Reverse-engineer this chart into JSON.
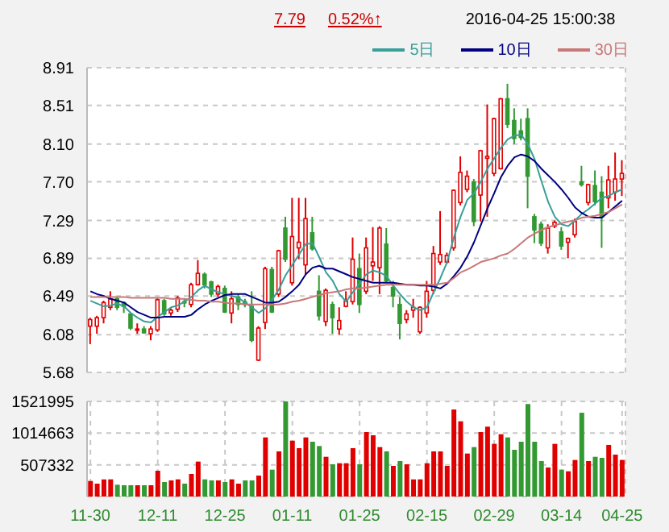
{
  "chart_data": [
    {
      "type": "candlestick",
      "annotations": [
        "7.79",
        "0.52%↑",
        "2016-04-25 15:00:38"
      ],
      "categories": [
        null,
        null,
        null,
        null,
        null,
        null,
        null,
        null,
        null,
        null,
        null,
        null,
        null,
        null,
        null,
        null,
        null,
        null,
        null,
        null,
        null,
        null,
        null,
        null,
        null,
        null,
        null,
        null,
        null,
        null,
        null,
        null,
        null,
        null,
        null,
        null,
        null,
        null,
        null,
        null,
        null,
        null,
        null,
        null,
        null,
        null,
        null,
        null,
        null,
        null,
        null,
        null,
        null,
        null,
        null,
        null,
        null,
        null,
        null,
        null,
        null,
        null,
        null,
        null,
        null,
        null,
        null,
        null,
        null,
        null,
        null,
        null,
        null,
        null,
        null,
        null,
        null,
        null,
        null,
        null
      ],
      "ohlc": [
        [
          6.17,
          6.26,
          5.98,
          6.24
        ],
        [
          6.17,
          6.28,
          6.09,
          6.26
        ],
        [
          6.26,
          6.44,
          6.2,
          6.42
        ],
        [
          6.37,
          6.54,
          6.34,
          6.46
        ],
        [
          6.46,
          6.48,
          6.34,
          6.37
        ],
        [
          6.42,
          6.43,
          6.31,
          6.38
        ],
        [
          6.3,
          6.31,
          6.13,
          6.15
        ],
        [
          6.13,
          6.2,
          6.09,
          6.14
        ],
        [
          6.14,
          6.17,
          6.09,
          6.1
        ],
        [
          6.09,
          6.17,
          6.02,
          6.14
        ],
        [
          6.13,
          6.47,
          6.11,
          6.45
        ],
        [
          6.44,
          6.46,
          6.28,
          6.3
        ],
        [
          6.31,
          6.36,
          6.28,
          6.34
        ],
        [
          6.35,
          6.49,
          6.32,
          6.47
        ],
        [
          6.43,
          6.46,
          6.37,
          6.42
        ],
        [
          6.4,
          6.63,
          6.37,
          6.61
        ],
        [
          6.61,
          6.87,
          6.6,
          6.73
        ],
        [
          6.72,
          6.74,
          6.57,
          6.61
        ],
        [
          6.64,
          6.65,
          6.48,
          6.51
        ],
        [
          6.51,
          6.61,
          6.48,
          6.59
        ],
        [
          6.57,
          6.6,
          6.31,
          6.32
        ],
        [
          6.31,
          6.54,
          6.2,
          6.46
        ],
        [
          6.48,
          6.51,
          6.34,
          6.4
        ],
        [
          6.43,
          6.46,
          6.37,
          6.4
        ],
        [
          6.38,
          6.54,
          6.0,
          6.02
        ],
        [
          5.81,
          6.17,
          5.8,
          6.15
        ],
        [
          6.21,
          6.8,
          6.14,
          6.78
        ],
        [
          6.77,
          6.8,
          6.31,
          6.32
        ],
        [
          6.51,
          6.98,
          6.48,
          6.97
        ],
        [
          7.21,
          7.33,
          6.85,
          6.88
        ],
        [
          6.63,
          7.53,
          6.6,
          7.12
        ],
        [
          7.0,
          7.53,
          6.88,
          7.06
        ],
        [
          6.82,
          7.53,
          6.71,
          7.31
        ],
        [
          7.16,
          7.33,
          6.97,
          6.99
        ],
        [
          6.54,
          6.71,
          6.23,
          6.28
        ],
        [
          6.22,
          6.57,
          6.17,
          6.55
        ],
        [
          6.4,
          6.43,
          6.09,
          6.26
        ],
        [
          6.14,
          6.37,
          6.08,
          6.23
        ],
        [
          6.38,
          6.54,
          6.37,
          6.44
        ],
        [
          6.43,
          7.11,
          6.4,
          6.88
        ],
        [
          6.78,
          6.94,
          6.31,
          6.4
        ],
        [
          6.54,
          7.11,
          6.51,
          7.0
        ],
        [
          6.81,
          7.22,
          6.65,
          6.85
        ],
        [
          6.79,
          7.23,
          6.51,
          7.21
        ],
        [
          7.04,
          7.21,
          6.63,
          6.65
        ],
        [
          6.58,
          6.65,
          6.37,
          6.49
        ],
        [
          6.4,
          6.48,
          6.03,
          6.2
        ],
        [
          6.24,
          6.34,
          6.2,
          6.3
        ],
        [
          6.34,
          6.46,
          6.26,
          6.37
        ],
        [
          6.11,
          6.38,
          6.09,
          6.37
        ],
        [
          6.31,
          6.65,
          6.26,
          6.54
        ],
        [
          6.55,
          7.02,
          6.51,
          6.94
        ],
        [
          6.85,
          7.39,
          6.82,
          6.93
        ],
        [
          6.85,
          6.95,
          6.83,
          6.92
        ],
        [
          7.0,
          7.62,
          6.97,
          7.61
        ],
        [
          7.48,
          7.97,
          7.45,
          7.8
        ],
        [
          7.62,
          7.82,
          7.59,
          7.76
        ],
        [
          7.7,
          7.73,
          7.23,
          7.28
        ],
        [
          7.56,
          8.04,
          7.28,
          8.03
        ],
        [
          7.95,
          8.52,
          7.33,
          7.97
        ],
        [
          7.79,
          8.38,
          7.76,
          8.37
        ],
        [
          7.84,
          8.59,
          7.83,
          8.58
        ],
        [
          8.58,
          8.74,
          8.27,
          8.31
        ],
        [
          8.35,
          8.48,
          8.1,
          8.16
        ],
        [
          8.24,
          8.37,
          8.14,
          8.17
        ],
        [
          8.37,
          8.48,
          7.42,
          7.76
        ],
        [
          7.33,
          7.36,
          7.05,
          7.19
        ],
        [
          7.25,
          7.28,
          7.02,
          7.05
        ],
        [
          7.0,
          7.25,
          6.94,
          7.21
        ],
        [
          7.23,
          7.29,
          7.21,
          7.27
        ],
        [
          7.17,
          7.22,
          6.98,
          7.02
        ],
        [
          7.06,
          7.11,
          6.89,
          7.1
        ],
        [
          7.14,
          7.31,
          7.11,
          7.28
        ],
        [
          7.7,
          7.87,
          7.65,
          7.67
        ],
        [
          7.48,
          7.68,
          7.45,
          7.67
        ],
        [
          7.66,
          7.82,
          7.45,
          7.49
        ],
        [
          7.59,
          7.76,
          7.0,
          7.33
        ],
        [
          7.53,
          7.87,
          7.42,
          7.72
        ],
        [
          7.59,
          8.01,
          7.5,
          7.73
        ],
        [
          7.73,
          7.93,
          7.55,
          7.79
        ]
      ],
      "series": [
        {
          "type": "line",
          "name": "5日",
          "color": "#3a9e9a",
          "values": [
            6.44,
            6.41,
            6.38,
            6.39,
            6.41,
            6.38,
            6.31,
            6.26,
            6.22,
            6.21,
            6.27,
            6.32,
            6.37,
            6.39,
            6.43,
            6.48,
            6.55,
            6.6,
            6.56,
            6.53,
            6.51,
            6.49,
            6.47,
            6.42,
            6.37,
            6.31,
            6.36,
            6.45,
            6.56,
            6.71,
            6.82,
            6.93,
            7.04,
            7.05,
            6.9,
            6.74,
            6.65,
            6.51,
            6.43,
            6.53,
            6.62,
            6.72,
            6.76,
            6.74,
            6.7,
            6.6,
            6.51,
            6.43,
            6.37,
            6.34,
            6.37,
            6.53,
            6.68,
            6.85,
            7.11,
            7.33,
            7.51,
            7.58,
            7.7,
            7.84,
            7.95,
            8.06,
            8.15,
            8.19,
            8.2,
            8.1,
            7.94,
            7.71,
            7.49,
            7.33,
            7.25,
            7.23,
            7.29,
            7.36,
            7.41,
            7.47,
            7.53,
            7.55,
            7.59,
            7.62
          ]
        },
        {
          "type": "line",
          "name": "10日",
          "color": "#000080",
          "values": [
            6.54,
            6.51,
            6.49,
            6.46,
            6.44,
            6.42,
            6.37,
            6.32,
            6.29,
            6.26,
            6.26,
            6.27,
            6.27,
            6.27,
            6.27,
            6.29,
            6.35,
            6.4,
            6.44,
            6.47,
            6.5,
            6.51,
            6.51,
            6.51,
            6.48,
            6.45,
            6.42,
            6.42,
            6.43,
            6.48,
            6.54,
            6.61,
            6.72,
            6.79,
            6.81,
            6.78,
            6.78,
            6.75,
            6.72,
            6.69,
            6.67,
            6.65,
            6.63,
            6.63,
            6.63,
            6.63,
            6.62,
            6.61,
            6.61,
            6.6,
            6.6,
            6.59,
            6.57,
            6.62,
            6.7,
            6.79,
            6.91,
            7.06,
            7.24,
            7.42,
            7.58,
            7.75,
            7.87,
            7.96,
            7.99,
            7.97,
            7.92,
            7.84,
            7.77,
            7.7,
            7.62,
            7.53,
            7.43,
            7.37,
            7.33,
            7.32,
            7.32,
            7.38,
            7.44,
            7.5
          ]
        },
        {
          "type": "line",
          "name": "30日",
          "color": "#c87878",
          "values": [
            6.48,
            6.48,
            6.48,
            6.48,
            6.48,
            6.48,
            6.47,
            6.47,
            6.47,
            6.47,
            6.47,
            6.47,
            6.46,
            6.46,
            6.46,
            6.45,
            6.44,
            6.44,
            6.43,
            6.43,
            6.42,
            6.41,
            6.41,
            6.4,
            6.4,
            6.4,
            6.4,
            6.4,
            6.4,
            6.41,
            6.43,
            6.44,
            6.46,
            6.48,
            6.5,
            6.52,
            6.53,
            6.54,
            6.56,
            6.57,
            6.57,
            6.58,
            6.59,
            6.6,
            6.61,
            6.61,
            6.61,
            6.61,
            6.61,
            6.61,
            6.61,
            6.61,
            6.62,
            6.63,
            6.68,
            6.74,
            6.77,
            6.81,
            6.85,
            6.87,
            6.89,
            6.92,
            6.94,
            6.99,
            7.05,
            7.11,
            7.15,
            7.19,
            7.22,
            7.24,
            7.26,
            7.28,
            7.29,
            7.32,
            7.33,
            7.34,
            7.36,
            7.38,
            7.42,
            7.46
          ]
        }
      ],
      "ylim": [
        5.68,
        8.91
      ],
      "yticks": [
        5.68,
        6.08,
        6.49,
        6.89,
        7.29,
        {
          "value": 7.7,
          "label": "7.70"
        },
        {
          "value": 8.1,
          "label": "8.10"
        },
        8.51,
        8.91
      ],
      "grid": true,
      "legend": "top right",
      "tick_labels": "y"
    },
    {
      "type": "bar",
      "categories": [
        "11-30",
        null,
        null,
        null,
        null,
        null,
        null,
        null,
        null,
        null,
        "12-11",
        null,
        null,
        null,
        null,
        null,
        null,
        null,
        null,
        null,
        "12-25",
        null,
        null,
        null,
        null,
        null,
        null,
        null,
        null,
        null,
        "01-11",
        null,
        null,
        null,
        null,
        null,
        null,
        null,
        null,
        null,
        "01-25",
        null,
        null,
        null,
        null,
        null,
        null,
        null,
        null,
        null,
        "02-15",
        null,
        null,
        null,
        null,
        null,
        null,
        null,
        null,
        null,
        "02-29",
        null,
        null,
        null,
        null,
        null,
        null,
        null,
        null,
        null,
        "03-14",
        null,
        null,
        null,
        null,
        null,
        null,
        null,
        null,
        "04-25"
      ],
      "values": [
        249000,
        206000,
        275000,
        275000,
        189000,
        181000,
        181000,
        181000,
        181000,
        181000,
        413000,
        232000,
        258000,
        275000,
        206000,
        361000,
        559000,
        275000,
        258000,
        258000,
        232000,
        275000,
        206000,
        258000,
        258000,
        335000,
        946000,
        430000,
        722000,
        1521995,
        894000,
        774000,
        946000,
        877000,
        808000,
        636000,
        516000,
        533000,
        533000,
        774000,
        516000,
        1032000,
        980000,
        791000,
        722000,
        490000,
        568000,
        516000,
        275000,
        275000,
        533000,
        722000,
        722000,
        490000,
        1393000,
        1204000,
        688000,
        791000,
        1032000,
        1118000,
        843000,
        997000,
        946000,
        748000,
        877000,
        1480000,
        877000,
        568000,
        464000,
        843000,
        430000,
        404000,
        585000,
        1341000,
        568000,
        636000,
        619000,
        826000,
        671000,
        585000
      ],
      "colors": [
        "#e00000",
        "#e00000",
        "#e00000",
        "#e00000",
        "#339933",
        "#339933",
        "#339933",
        "#e00000",
        "#339933",
        "#e00000",
        "#e00000",
        "#339933",
        "#e00000",
        "#e00000",
        "#339933",
        "#e00000",
        "#e00000",
        "#339933",
        "#339933",
        "#e00000",
        "#339933",
        "#e00000",
        "#e00000",
        "#339933",
        "#339933",
        "#e00000",
        "#e00000",
        "#339933",
        "#e00000",
        "#339933",
        "#e00000",
        "#e00000",
        "#e00000",
        "#339933",
        "#339933",
        "#e00000",
        "#339933",
        "#e00000",
        "#e00000",
        "#e00000",
        "#339933",
        "#e00000",
        "#e00000",
        "#e00000",
        "#339933",
        "#e00000",
        "#339933",
        "#e00000",
        "#e00000",
        "#e00000",
        "#e00000",
        "#e00000",
        "#e00000",
        "#e00000",
        "#e00000",
        "#e00000",
        "#e00000",
        "#339933",
        "#e00000",
        "#e00000",
        "#e00000",
        "#e00000",
        "#339933",
        "#339933",
        "#339933",
        "#339933",
        "#339933",
        "#339933",
        "#e00000",
        "#e00000",
        "#339933",
        "#e00000",
        "#e00000",
        "#339933",
        "#e00000",
        "#339933",
        "#339933",
        "#e00000",
        "#e00000",
        "#e00000"
      ],
      "ylim": [
        0,
        1521995
      ],
      "yticks": [
        507332,
        1014663,
        1521995
      ],
      "grid": true
    }
  ]
}
